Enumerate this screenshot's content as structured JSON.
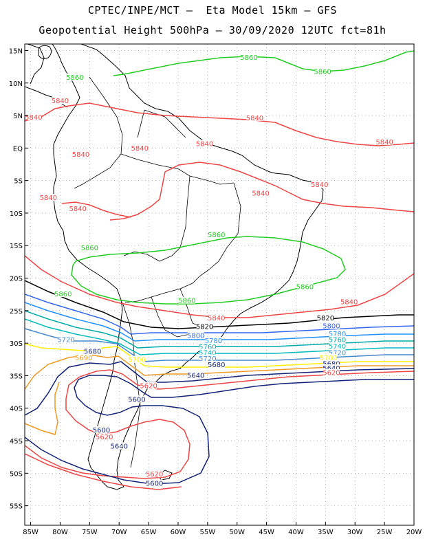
{
  "header": {
    "line1": "CPTEC/INPE/MCT –  Eta Model 15km – GFS",
    "line2": "Geopotential Height 500hPa – 30/09/2020 12UTC fct=81h"
  },
  "map_extent": {
    "lon_min": -86,
    "lon_max": -20,
    "lat_min": -58,
    "lat_max": 16
  },
  "axes": {
    "lat_ticks": [
      {
        "value": 15,
        "label": "15N"
      },
      {
        "value": 10,
        "label": "10N"
      },
      {
        "value": 5,
        "label": "5N"
      },
      {
        "value": 0,
        "label": "EQ"
      },
      {
        "value": -5,
        "label": "5S"
      },
      {
        "value": -10,
        "label": "10S"
      },
      {
        "value": -15,
        "label": "15S"
      },
      {
        "value": -20,
        "label": "20S"
      },
      {
        "value": -25,
        "label": "25S"
      },
      {
        "value": -30,
        "label": "30S"
      },
      {
        "value": -35,
        "label": "35S"
      },
      {
        "value": -40,
        "label": "40S"
      },
      {
        "value": -45,
        "label": "45S"
      },
      {
        "value": -50,
        "label": "50S"
      },
      {
        "value": -55,
        "label": "55S"
      }
    ],
    "lon_ticks": [
      {
        "value": -85,
        "label": "85W"
      },
      {
        "value": -80,
        "label": "80W"
      },
      {
        "value": -75,
        "label": "75W"
      },
      {
        "value": -70,
        "label": "70W"
      },
      {
        "value": -65,
        "label": "65W"
      },
      {
        "value": -60,
        "label": "60W"
      },
      {
        "value": -55,
        "label": "55W"
      },
      {
        "value": -50,
        "label": "50W"
      },
      {
        "value": -45,
        "label": "45W"
      },
      {
        "value": -40,
        "label": "40W"
      },
      {
        "value": -35,
        "label": "35W"
      },
      {
        "value": -30,
        "label": "30W"
      },
      {
        "value": -25,
        "label": "25W"
      },
      {
        "value": -20,
        "label": "20W"
      }
    ]
  },
  "colors": {
    "c5860": "#22cc22",
    "c5840": "#ee4444",
    "c5820": "#000000",
    "c5800": "#3366ee",
    "c5780": "#1e90ff",
    "c5760": "#00aaaa",
    "c5740": "#00bbbb",
    "c5720": "#4488cc",
    "c5700": "#ffee00",
    "c5680": "#ee9922",
    "c5640": "#112277",
    "c5620": "#ee4444",
    "c5600": "#112277",
    "coast": "#000000",
    "grid": "#888888"
  },
  "contour_labels": [
    {
      "text": "5860",
      "lon": -77.5,
      "lat": 10.7,
      "color": "c5860"
    },
    {
      "text": "5860",
      "lon": -48,
      "lat": 13.8,
      "color": "c5860"
    },
    {
      "text": "5860",
      "lon": -35.5,
      "lat": 11.6,
      "color": "c5860"
    },
    {
      "text": "5840",
      "lon": -80,
      "lat": 7.1,
      "color": "c5840"
    },
    {
      "text": "5840",
      "lon": -84.5,
      "lat": 4.6,
      "color": "c5840"
    },
    {
      "text": "5840",
      "lon": -47,
      "lat": 4.5,
      "color": "c5840"
    },
    {
      "text": "5840",
      "lon": -25,
      "lat": 0.8,
      "color": "c5840"
    },
    {
      "text": "5840",
      "lon": -55.5,
      "lat": 0.5,
      "color": "c5840"
    },
    {
      "text": "5840",
      "lon": -66.5,
      "lat": -0.2,
      "color": "c5840"
    },
    {
      "text": "5840",
      "lon": -76.5,
      "lat": -1.1,
      "color": "c5840"
    },
    {
      "text": "5840",
      "lon": -46,
      "lat": -7.1,
      "color": "c5840"
    },
    {
      "text": "5840",
      "lon": -36,
      "lat": -5.8,
      "color": "c5840"
    },
    {
      "text": "5840",
      "lon": -82,
      "lat": -7.8,
      "color": "c5840"
    },
    {
      "text": "5840",
      "lon": -77,
      "lat": -9.5,
      "color": "c5840"
    },
    {
      "text": "5860",
      "lon": -53.5,
      "lat": -13.5,
      "color": "c5860"
    },
    {
      "text": "5860",
      "lon": -75,
      "lat": -15.5,
      "color": "c5860"
    },
    {
      "text": "5860",
      "lon": -38.5,
      "lat": -21.5,
      "color": "c5860"
    },
    {
      "text": "5860",
      "lon": -79.5,
      "lat": -22.6,
      "color": "c5860"
    },
    {
      "text": "5860",
      "lon": -58.5,
      "lat": -23.6,
      "color": "c5860"
    },
    {
      "text": "5840",
      "lon": -31,
      "lat": -23.8,
      "color": "c5840"
    },
    {
      "text": "5840",
      "lon": -53.5,
      "lat": -26.3,
      "color": "c5840"
    },
    {
      "text": "5820",
      "lon": -35,
      "lat": -26.3,
      "color": "c5820"
    },
    {
      "text": "5820",
      "lon": -55.5,
      "lat": -27.6,
      "color": "c5820"
    },
    {
      "text": "5800",
      "lon": -34,
      "lat": -27.5,
      "color": "c5800"
    },
    {
      "text": "5800",
      "lon": -57,
      "lat": -29,
      "color": "c5800"
    },
    {
      "text": "5780",
      "lon": -33,
      "lat": -28.7,
      "color": "c5780"
    },
    {
      "text": "5780",
      "lon": -54,
      "lat": -29.8,
      "color": "c5780"
    },
    {
      "text": "5760",
      "lon": -33,
      "lat": -29.6,
      "color": "c5760"
    },
    {
      "text": "5760",
      "lon": -55,
      "lat": -30.7,
      "color": "c5760"
    },
    {
      "text": "5740",
      "lon": -33,
      "lat": -30.6,
      "color": "c5740"
    },
    {
      "text": "5740",
      "lon": -55,
      "lat": -31.6,
      "color": "c5740"
    },
    {
      "text": "5720",
      "lon": -33,
      "lat": -31.6,
      "color": "c5720"
    },
    {
      "text": "5720",
      "lon": -55,
      "lat": -32.5,
      "color": "c5720"
    },
    {
      "text": "5720",
      "lon": -79,
      "lat": -29.6,
      "color": "c5720"
    },
    {
      "text": "5700",
      "lon": -34.5,
      "lat": -32.4,
      "color": "c5700"
    },
    {
      "text": "5700",
      "lon": -67,
      "lat": -32.7,
      "color": "c5700"
    },
    {
      "text": "5690",
      "lon": -76,
      "lat": -32.4,
      "color": "c5680"
    },
    {
      "text": "5680",
      "lon": -74.5,
      "lat": -31.4,
      "color": "c5640"
    },
    {
      "text": "5680",
      "lon": -53.5,
      "lat": -33.5,
      "color": "c5640"
    },
    {
      "text": "5680",
      "lon": -34,
      "lat": -33.3,
      "color": "c5640"
    },
    {
      "text": "5640",
      "lon": -34,
      "lat": -34,
      "color": "c5640"
    },
    {
      "text": "5640",
      "lon": -57,
      "lat": -35.1,
      "color": "c5640"
    },
    {
      "text": "5620",
      "lon": -34,
      "lat": -34.7,
      "color": "c5620"
    },
    {
      "text": "5620",
      "lon": -65,
      "lat": -36.7,
      "color": "c5620"
    },
    {
      "text": "5600",
      "lon": -67,
      "lat": -38.8,
      "color": "c5600"
    },
    {
      "text": "5600",
      "lon": -73,
      "lat": -43.5,
      "color": "c5600"
    },
    {
      "text": "5620",
      "lon": -72.5,
      "lat": -44.6,
      "color": "c5620"
    },
    {
      "text": "5640",
      "lon": -70,
      "lat": -46,
      "color": "c5640"
    },
    {
      "text": "5620",
      "lon": -64,
      "lat": -50.3,
      "color": "c5620"
    },
    {
      "text": "5600",
      "lon": -64,
      "lat": -51.7,
      "color": "c5600"
    }
  ]
}
